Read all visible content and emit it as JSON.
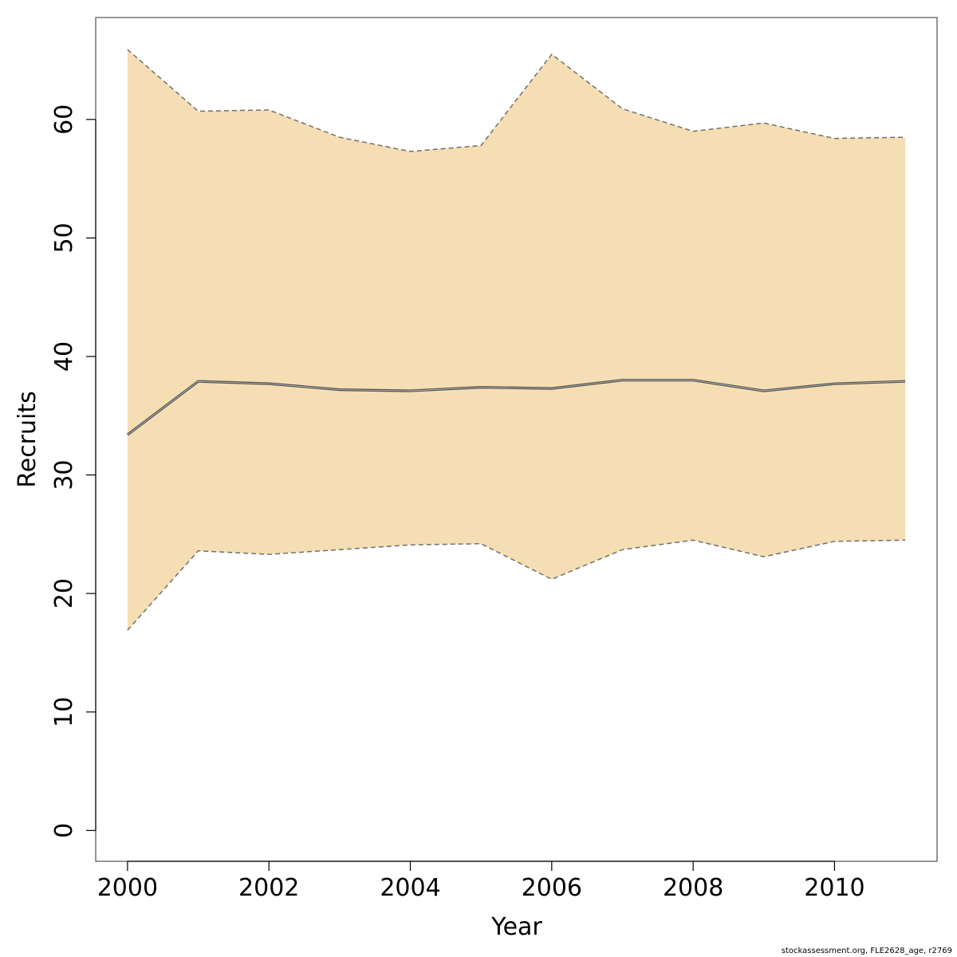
{
  "chart_data": {
    "type": "area",
    "title": "",
    "xlabel": "Year",
    "ylabel": "Recruits",
    "xlim": [
      1999.55,
      2011.45
    ],
    "ylim": [
      -2.6,
      68.6
    ],
    "x_ticks": [
      2000,
      2002,
      2004,
      2006,
      2008,
      2010
    ],
    "y_ticks": [
      0,
      10,
      20,
      30,
      40,
      50,
      60
    ],
    "x": [
      2000,
      2001,
      2002,
      2003,
      2004,
      2005,
      2006,
      2007,
      2008,
      2009,
      2010,
      2011
    ],
    "series": [
      {
        "role": "estimate",
        "values": [
          33.4,
          37.9,
          37.7,
          37.2,
          37.1,
          37.4,
          37.3,
          38.0,
          38.0,
          37.1,
          37.7,
          37.9
        ]
      },
      {
        "role": "lower",
        "values": [
          16.9,
          23.6,
          23.3,
          23.7,
          24.1,
          24.2,
          21.2,
          23.7,
          24.5,
          23.1,
          24.4,
          24.5
        ]
      },
      {
        "role": "upper",
        "values": [
          65.9,
          60.7,
          60.8,
          58.5,
          57.3,
          57.8,
          65.5,
          60.9,
          59.0,
          59.7,
          58.4,
          58.5
        ]
      }
    ],
    "colors": {
      "band": "#f5deb3",
      "band_edge": "#707070",
      "line": "#505050",
      "frame": "#505050"
    },
    "grid": false,
    "legend": "none"
  },
  "credit": "stockassessment.org, FLE2628_age, r2769"
}
